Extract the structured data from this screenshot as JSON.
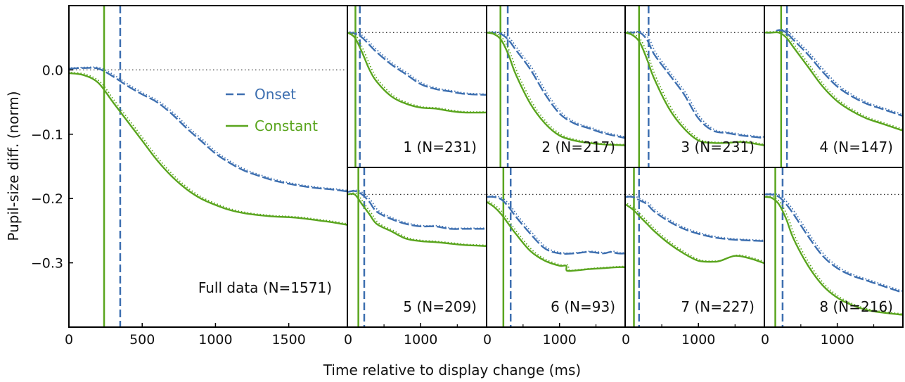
{
  "figure": {
    "ylabel": "Pupil-size diff. (norm)",
    "xlabel": "Time relative to display change (ms)",
    "colors": {
      "onset": "#3d6fb0",
      "constant": "#5aa51e",
      "frame": "#000000",
      "reference": "#333333"
    }
  },
  "legend": {
    "entries": [
      {
        "key": "onset",
        "label": "Onset",
        "style": "dashed"
      },
      {
        "key": "constant",
        "label": "Constant",
        "style": "solid"
      }
    ]
  },
  "chart_data": [
    {
      "id": "full",
      "type": "line",
      "label": "Full data (N=1571)",
      "xlim": [
        0,
        1900
      ],
      "ylim": [
        -0.4,
        0.1
      ],
      "xticks": [
        0,
        500,
        1000,
        1500
      ],
      "yticks": [
        0.0,
        -0.1,
        -0.2,
        -0.3
      ],
      "ytick_labels": [
        "0.0",
        "−0.1",
        "−0.2",
        "−0.3"
      ],
      "reference_y": 0.0,
      "vlines": {
        "constant": 240,
        "onset": 350
      },
      "series": [
        {
          "name": "Onset",
          "key": "onset",
          "x": [
            0,
            100,
            200,
            300,
            400,
            500,
            600,
            700,
            800,
            900,
            1000,
            1100,
            1200,
            1300,
            1400,
            1500,
            1600,
            1700,
            1800,
            1900
          ],
          "y": [
            0.002,
            0.003,
            0.002,
            -0.01,
            -0.025,
            -0.038,
            -0.05,
            -0.068,
            -0.09,
            -0.11,
            -0.13,
            -0.145,
            -0.157,
            -0.165,
            -0.172,
            -0.177,
            -0.181,
            -0.184,
            -0.186,
            -0.189
          ]
        },
        {
          "name": "Constant",
          "key": "constant",
          "x": [
            0,
            100,
            200,
            300,
            400,
            500,
            600,
            700,
            800,
            900,
            1000,
            1100,
            1200,
            1300,
            1400,
            1500,
            1600,
            1700,
            1800,
            1900
          ],
          "y": [
            -0.005,
            -0.008,
            -0.02,
            -0.05,
            -0.08,
            -0.11,
            -0.14,
            -0.165,
            -0.185,
            -0.2,
            -0.21,
            -0.218,
            -0.223,
            -0.226,
            -0.228,
            -0.229,
            -0.231,
            -0.234,
            -0.237,
            -0.241
          ]
        }
      ]
    },
    {
      "id": "p1",
      "type": "line",
      "label": "1 (N=231)",
      "xlim": [
        0,
        1900
      ],
      "ylim": [
        -0.23,
        0.1
      ],
      "xticks": [
        0,
        1000
      ],
      "reference_y": 0.045,
      "vlines": {
        "constant": 110,
        "onset": 170
      },
      "series": [
        {
          "name": "Onset",
          "key": "onset",
          "x": [
            0,
            100,
            200,
            300,
            400,
            600,
            800,
            1000,
            1200,
            1400,
            1600,
            1900
          ],
          "y": [
            0.045,
            0.043,
            0.035,
            0.02,
            0.005,
            -0.02,
            -0.04,
            -0.06,
            -0.07,
            -0.075,
            -0.08,
            -0.082
          ]
        },
        {
          "name": "Constant",
          "key": "constant",
          "x": [
            0,
            100,
            200,
            300,
            400,
            600,
            800,
            1000,
            1200,
            1400,
            1600,
            1900
          ],
          "y": [
            0.045,
            0.035,
            0.005,
            -0.03,
            -0.055,
            -0.085,
            -0.1,
            -0.108,
            -0.11,
            -0.115,
            -0.118,
            -0.118
          ]
        }
      ]
    },
    {
      "id": "p2",
      "type": "line",
      "label": "2 (N=217)",
      "xlim": [
        0,
        1900
      ],
      "ylim": [
        -0.23,
        0.1
      ],
      "xticks": [
        0,
        1000
      ],
      "reference_y": 0.045,
      "vlines": {
        "constant": 190,
        "onset": 290
      },
      "series": [
        {
          "name": "Onset",
          "key": "onset",
          "x": [
            0,
            100,
            200,
            300,
            400,
            600,
            800,
            1000,
            1200,
            1400,
            1600,
            1900
          ],
          "y": [
            0.045,
            0.045,
            0.042,
            0.03,
            0.01,
            -0.03,
            -0.08,
            -0.12,
            -0.14,
            -0.15,
            -0.16,
            -0.17
          ]
        },
        {
          "name": "Constant",
          "key": "constant",
          "x": [
            0,
            100,
            200,
            300,
            400,
            600,
            800,
            1000,
            1200,
            1400,
            1600,
            1900
          ],
          "y": [
            0.045,
            0.042,
            0.03,
            0.0,
            -0.04,
            -0.1,
            -0.14,
            -0.165,
            -0.175,
            -0.18,
            -0.183,
            -0.185
          ]
        }
      ]
    },
    {
      "id": "p3",
      "type": "line",
      "label": "3 (N=231)",
      "xlim": [
        0,
        1900
      ],
      "ylim": [
        -0.23,
        0.1
      ],
      "xticks": [
        0,
        1000
      ],
      "reference_y": 0.045,
      "vlines": {
        "constant": 190,
        "onset": 320
      },
      "series": [
        {
          "name": "Onset",
          "key": "onset",
          "x": [
            0,
            100,
            200,
            300,
            400,
            600,
            800,
            1000,
            1200,
            1400,
            1600,
            1900
          ],
          "y": [
            0.045,
            0.045,
            0.045,
            0.03,
            0.0,
            -0.04,
            -0.08,
            -0.13,
            -0.155,
            -0.16,
            -0.165,
            -0.17
          ]
        },
        {
          "name": "Constant",
          "key": "constant",
          "x": [
            0,
            100,
            200,
            300,
            400,
            600,
            800,
            1000,
            1200,
            1400,
            1600,
            1900
          ],
          "y": [
            0.045,
            0.04,
            0.025,
            -0.01,
            -0.05,
            -0.11,
            -0.15,
            -0.175,
            -0.18,
            -0.18,
            -0.178,
            -0.185
          ]
        }
      ]
    },
    {
      "id": "p4",
      "type": "line",
      "label": "4 (N=147)",
      "xlim": [
        0,
        1900
      ],
      "ylim": [
        -0.23,
        0.1
      ],
      "xticks": [
        0,
        1000
      ],
      "reference_y": 0.045,
      "vlines": {
        "constant": 230,
        "onset": 310
      },
      "series": [
        {
          "name": "Onset",
          "key": "onset",
          "x": [
            0,
            100,
            200,
            300,
            400,
            600,
            800,
            1000,
            1200,
            1400,
            1600,
            1900
          ],
          "y": [
            0.045,
            0.045,
            0.05,
            0.045,
            0.03,
            0.0,
            -0.035,
            -0.065,
            -0.085,
            -0.1,
            -0.11,
            -0.125
          ]
        },
        {
          "name": "Constant",
          "key": "constant",
          "x": [
            0,
            100,
            200,
            300,
            400,
            600,
            800,
            1000,
            1200,
            1400,
            1600,
            1900
          ],
          "y": [
            0.045,
            0.045,
            0.045,
            0.035,
            0.015,
            -0.025,
            -0.065,
            -0.095,
            -0.115,
            -0.13,
            -0.14,
            -0.155
          ]
        }
      ]
    },
    {
      "id": "p5",
      "type": "line",
      "label": "5 (N=209)",
      "xlim": [
        0,
        1900
      ],
      "ylim": [
        -0.225,
        0.1
      ],
      "xticks": [
        0,
        1000
      ],
      "reference_y": 0.045,
      "vlines": {
        "constant": 150,
        "onset": 230
      },
      "series": [
        {
          "name": "Onset",
          "key": "onset",
          "x": [
            0,
            100,
            200,
            300,
            400,
            600,
            800,
            1000,
            1200,
            1400,
            1600,
            1900
          ],
          "y": [
            0.05,
            0.052,
            0.045,
            0.03,
            0.01,
            -0.005,
            -0.015,
            -0.02,
            -0.02,
            -0.025,
            -0.025,
            -0.025
          ]
        },
        {
          "name": "Constant",
          "key": "constant",
          "x": [
            0,
            100,
            200,
            300,
            400,
            600,
            800,
            1000,
            1200,
            1400,
            1600,
            1900
          ],
          "y": [
            0.045,
            0.045,
            0.025,
            0.005,
            -0.015,
            -0.03,
            -0.045,
            -0.05,
            -0.052,
            -0.055,
            -0.058,
            -0.06
          ]
        }
      ]
    },
    {
      "id": "p6",
      "type": "line",
      "label": "6 (N=93)",
      "xlim": [
        0,
        1900
      ],
      "ylim": [
        -0.225,
        0.1
      ],
      "xticks": [
        0,
        1000
      ],
      "reference_y": 0.045,
      "vlines": {
        "constant": 230,
        "onset": 330
      },
      "series": [
        {
          "name": "Onset",
          "key": "onset",
          "x": [
            0,
            100,
            200,
            300,
            400,
            600,
            800,
            1000,
            1200,
            1400,
            1600,
            1700,
            1800,
            1900
          ],
          "y": [
            0.04,
            0.04,
            0.035,
            0.02,
            0.0,
            -0.035,
            -0.065,
            -0.075,
            -0.075,
            -0.072,
            -0.075,
            -0.072,
            -0.075,
            -0.075
          ]
        },
        {
          "name": "Constant",
          "key": "constant",
          "x": [
            0,
            100,
            200,
            300,
            400,
            600,
            800,
            1000,
            1090,
            1100,
            1200,
            1400,
            1600,
            1800,
            1900
          ],
          "y": [
            0.03,
            0.02,
            0.005,
            -0.015,
            -0.035,
            -0.07,
            -0.09,
            -0.1,
            -0.1,
            -0.11,
            -0.11,
            -0.107,
            -0.105,
            -0.103,
            -0.103
          ]
        }
      ]
    },
    {
      "id": "p7",
      "type": "line",
      "label": "7 (N=227)",
      "xlim": [
        0,
        1900
      ],
      "ylim": [
        -0.225,
        0.1
      ],
      "xticks": [
        0,
        1000
      ],
      "reference_y": 0.045,
      "vlines": {
        "constant": 120,
        "onset": 190
      },
      "series": [
        {
          "name": "Onset",
          "key": "onset",
          "x": [
            0,
            100,
            200,
            300,
            400,
            600,
            800,
            1000,
            1200,
            1400,
            1600,
            1900
          ],
          "y": [
            0.04,
            0.04,
            0.033,
            0.025,
            0.01,
            -0.01,
            -0.025,
            -0.035,
            -0.042,
            -0.046,
            -0.048,
            -0.05
          ]
        },
        {
          "name": "Constant",
          "key": "constant",
          "x": [
            0,
            100,
            200,
            300,
            400,
            600,
            800,
            1000,
            1200,
            1300,
            1500,
            1700,
            1900
          ],
          "y": [
            0.025,
            0.015,
            0.0,
            -0.015,
            -0.03,
            -0.055,
            -0.075,
            -0.09,
            -0.092,
            -0.09,
            -0.08,
            -0.085,
            -0.095
          ]
        }
      ]
    },
    {
      "id": "p8",
      "type": "line",
      "label": "8 (N=216)",
      "xlim": [
        0,
        1900
      ],
      "ylim": [
        -0.225,
        0.1
      ],
      "xticks": [
        0,
        1000
      ],
      "reference_y": 0.045,
      "vlines": {
        "constant": 150,
        "onset": 250
      },
      "series": [
        {
          "name": "Onset",
          "key": "onset",
          "x": [
            0,
            100,
            200,
            300,
            400,
            600,
            800,
            1000,
            1200,
            1400,
            1600,
            1900
          ],
          "y": [
            0.045,
            0.045,
            0.04,
            0.025,
            0.005,
            -0.04,
            -0.08,
            -0.105,
            -0.12,
            -0.13,
            -0.14,
            -0.155
          ]
        },
        {
          "name": "Constant",
          "key": "constant",
          "x": [
            0,
            100,
            200,
            300,
            400,
            600,
            800,
            1000,
            1200,
            1400,
            1600,
            1900
          ],
          "y": [
            0.04,
            0.038,
            0.025,
            -0.005,
            -0.045,
            -0.1,
            -0.14,
            -0.165,
            -0.18,
            -0.19,
            -0.195,
            -0.2
          ]
        }
      ]
    }
  ]
}
